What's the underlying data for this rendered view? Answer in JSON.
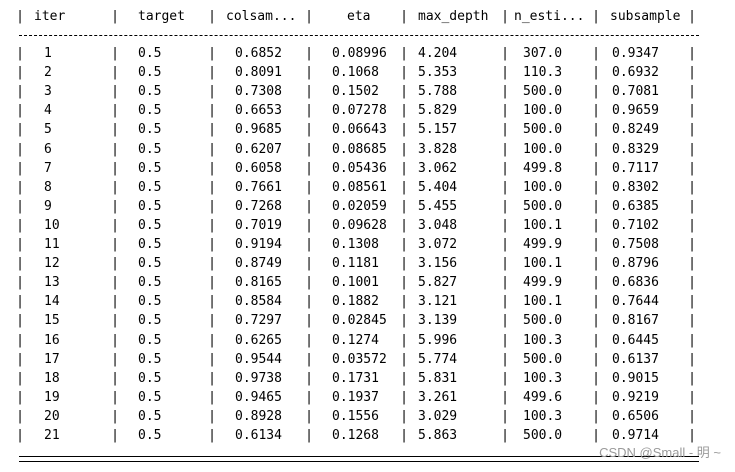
{
  "table": {
    "columns": [
      "iter",
      "target",
      "colsam...",
      "eta",
      "max_depth",
      "n_esti...",
      "subsample"
    ],
    "rows": [
      [
        "1",
        "0.5",
        "0.6852",
        "0.08996",
        "4.204",
        "307.0",
        "0.9347"
      ],
      [
        "2",
        "0.5",
        "0.8091",
        "0.1068",
        "5.353",
        "110.3",
        "0.6932"
      ],
      [
        "3",
        "0.5",
        "0.7308",
        "0.1502",
        "5.788",
        "500.0",
        "0.7081"
      ],
      [
        "4",
        "0.5",
        "0.6653",
        "0.07278",
        "5.829",
        "100.0",
        "0.9659"
      ],
      [
        "5",
        "0.5",
        "0.9685",
        "0.06643",
        "5.157",
        "500.0",
        "0.8249"
      ],
      [
        "6",
        "0.5",
        "0.6207",
        "0.08685",
        "3.828",
        "100.0",
        "0.8329"
      ],
      [
        "7",
        "0.5",
        "0.6058",
        "0.05436",
        "3.062",
        "499.8",
        "0.7117"
      ],
      [
        "8",
        "0.5",
        "0.7661",
        "0.08561",
        "5.404",
        "100.0",
        "0.8302"
      ],
      [
        "9",
        "0.5",
        "0.7268",
        "0.02059",
        "5.455",
        "500.0",
        "0.6385"
      ],
      [
        "10",
        "0.5",
        "0.7019",
        "0.09628",
        "3.048",
        "100.1",
        "0.7102"
      ],
      [
        "11",
        "0.5",
        "0.9194",
        "0.1308",
        "3.072",
        "499.9",
        "0.7508"
      ],
      [
        "12",
        "0.5",
        "0.8749",
        "0.1181",
        "3.156",
        "100.1",
        "0.8796"
      ],
      [
        "13",
        "0.5",
        "0.8165",
        "0.1001",
        "5.827",
        "499.9",
        "0.6836"
      ],
      [
        "14",
        "0.5",
        "0.8584",
        "0.1882",
        "3.121",
        "100.1",
        "0.7644"
      ],
      [
        "15",
        "0.5",
        "0.7297",
        "0.02845",
        "3.139",
        "500.0",
        "0.8167"
      ],
      [
        "16",
        "0.5",
        "0.6265",
        "0.1274",
        "5.996",
        "100.3",
        "0.6445"
      ],
      [
        "17",
        "0.5",
        "0.9544",
        "0.03572",
        "5.774",
        "500.0",
        "0.6137"
      ],
      [
        "18",
        "0.5",
        "0.9738",
        "0.1731",
        "5.831",
        "100.3",
        "0.9015"
      ],
      [
        "19",
        "0.5",
        "0.9465",
        "0.1937",
        "3.261",
        "499.6",
        "0.9219"
      ],
      [
        "20",
        "0.5",
        "0.8928",
        "0.1556",
        "3.029",
        "100.3",
        "0.6506"
      ],
      [
        "21",
        "0.5",
        "0.6134",
        "0.1268",
        "5.863",
        "500.0",
        "0.9714"
      ]
    ]
  },
  "watermark": "CSDN @Small - 明 ~"
}
